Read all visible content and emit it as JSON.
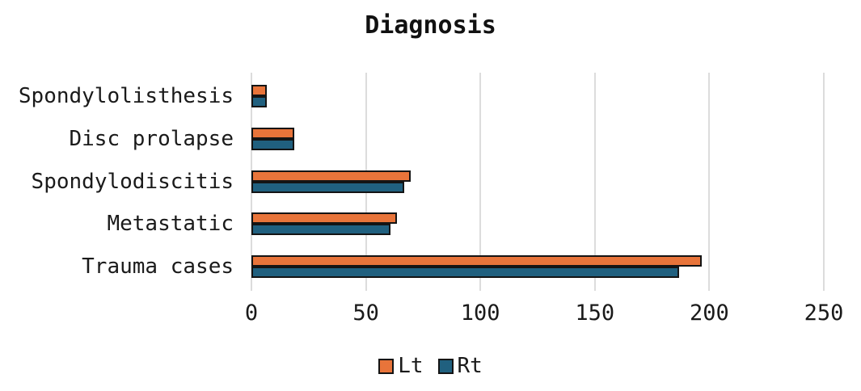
{
  "chart_data": {
    "type": "bar",
    "orientation": "horizontal",
    "title": "Diagnosis",
    "categories": [
      "Spondylolisthesis",
      "Disc prolapse",
      "Spondylodiscitis",
      "Metastatic",
      "Trauma cases"
    ],
    "series": [
      {
        "name": "Lt",
        "color": "#E8743A",
        "values": [
          6,
          18,
          69,
          63,
          196
        ]
      },
      {
        "name": "Rt",
        "color": "#20607F",
        "values": [
          6,
          18,
          66,
          60,
          186
        ]
      }
    ],
    "xlabel": "",
    "ylabel": "",
    "xlim": [
      0,
      250
    ],
    "xticks": [
      0,
      50,
      100,
      150,
      200,
      250
    ],
    "grid": true,
    "legend_position": "bottom",
    "colors": {
      "background": "#FFFFFF",
      "gridline": "#DCDCDC",
      "bar_border": "#141414",
      "text": "#1A1A1A"
    }
  }
}
